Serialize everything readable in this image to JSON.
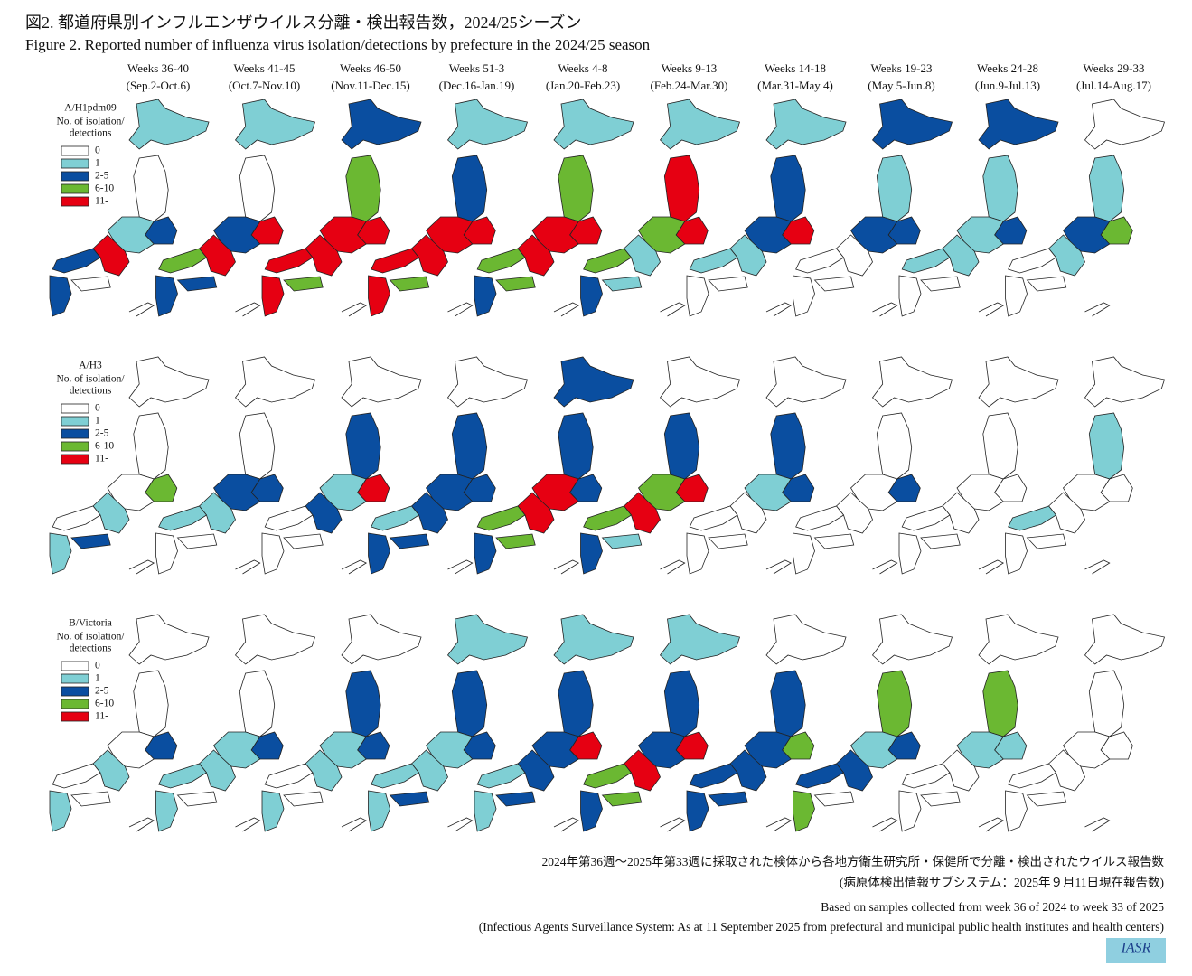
{
  "header": {
    "title_ja": "図2. 都道府県別インフルエンザウイルス分離・検出報告数，2024/25シーズン",
    "title_en": "Figure 2. Reported number of influenza virus isolation/detections by prefecture in the 2024/25 season"
  },
  "columns": [
    {
      "weeks": "Weeks 36-40",
      "dates": "(Sep.2-Oct.6)"
    },
    {
      "weeks": "Weeks 41-45",
      "dates": "(Oct.7-Nov.10)"
    },
    {
      "weeks": "Weeks 46-50",
      "dates": "(Nov.11-Dec.15)"
    },
    {
      "weeks": "Weeks 51-3",
      "dates": "(Dec.16-Jan.19)"
    },
    {
      "weeks": "Weeks 4-8",
      "dates": "(Jan.20-Feb.23)"
    },
    {
      "weeks": "Weeks 9-13",
      "dates": "(Feb.24-Mar.30)"
    },
    {
      "weeks": "Weeks 14-18",
      "dates": "(Mar.31-May 4)"
    },
    {
      "weeks": "Weeks 19-23",
      "dates": "(May 5-Jun.8)"
    },
    {
      "weeks": "Weeks 24-28",
      "dates": "(Jun.9-Jul.13)"
    },
    {
      "weeks": "Weeks 29-33",
      "dates": "(Jul.14-Aug.17)"
    }
  ],
  "legend": {
    "title": [
      "No. of isolation/",
      "detections"
    ],
    "levels": [
      {
        "label": "0",
        "color": "#ffffff"
      },
      {
        "label": "1",
        "color": "#7fcfd4"
      },
      {
        "label": "2-5",
        "color": "#0a4ea0"
      },
      {
        "label": "6-10",
        "color": "#6bb832"
      },
      {
        "label": "11-",
        "color": "#e60012"
      }
    ]
  },
  "rows": [
    {
      "subtype": "A/H1pdm09",
      "maps": [
        [
          1,
          0,
          2,
          1,
          4,
          2,
          0,
          2
        ],
        [
          1,
          0,
          4,
          2,
          4,
          3,
          2,
          2
        ],
        [
          2,
          3,
          4,
          4,
          4,
          4,
          3,
          4
        ],
        [
          1,
          2,
          4,
          4,
          4,
          4,
          3,
          4
        ],
        [
          1,
          3,
          4,
          4,
          4,
          3,
          3,
          2
        ],
        [
          1,
          4,
          4,
          3,
          1,
          3,
          1,
          2
        ],
        [
          1,
          2,
          4,
          2,
          1,
          1,
          0,
          0
        ],
        [
          2,
          1,
          2,
          2,
          0,
          0,
          0,
          0
        ],
        [
          2,
          1,
          2,
          1,
          1,
          1,
          0,
          0
        ],
        [
          0,
          1,
          3,
          2,
          1,
          0,
          0,
          0
        ]
      ]
    },
    {
      "subtype": "A/H3",
      "maps": [
        [
          0,
          0,
          3,
          0,
          1,
          0,
          2,
          1
        ],
        [
          0,
          0,
          2,
          2,
          1,
          1,
          0,
          0
        ],
        [
          0,
          2,
          4,
          1,
          2,
          0,
          0,
          0
        ],
        [
          0,
          2,
          2,
          2,
          2,
          1,
          2,
          2
        ],
        [
          2,
          2,
          2,
          4,
          4,
          3,
          3,
          2
        ],
        [
          0,
          2,
          4,
          3,
          4,
          3,
          1,
          2
        ],
        [
          0,
          2,
          2,
          1,
          0,
          0,
          0,
          0
        ],
        [
          0,
          0,
          2,
          0,
          0,
          0,
          0,
          0
        ],
        [
          0,
          0,
          0,
          0,
          0,
          0,
          0,
          0
        ],
        [
          0,
          1,
          0,
          0,
          0,
          1,
          0,
          0
        ]
      ]
    },
    {
      "subtype": "B/Victoria",
      "maps": [
        [
          0,
          0,
          2,
          0,
          1,
          0,
          0,
          1
        ],
        [
          0,
          0,
          2,
          1,
          1,
          1,
          0,
          1
        ],
        [
          0,
          2,
          2,
          1,
          1,
          0,
          0,
          1
        ],
        [
          1,
          2,
          2,
          1,
          1,
          1,
          2,
          1
        ],
        [
          1,
          2,
          4,
          2,
          2,
          1,
          2,
          1
        ],
        [
          1,
          2,
          4,
          2,
          4,
          3,
          3,
          2
        ],
        [
          0,
          2,
          3,
          2,
          2,
          2,
          2,
          2
        ],
        [
          0,
          3,
          2,
          1,
          2,
          2,
          0,
          3
        ],
        [
          0,
          3,
          1,
          1,
          0,
          0,
          0,
          0
        ],
        [
          0,
          0,
          0,
          0,
          0,
          0,
          0,
          0
        ]
      ]
    }
  ],
  "footer": [
    "2024年第36週～2025年第33週に採取された検体から各地方衛生研究所・保健所で分離・検出されたウイルス報告数",
    "(病原体検出情報サブシステム：2025年９月11日現在報告数)",
    "Based on samples collected from week 36 of 2024 to week 33 of 2025",
    "(Infectious Agents Surveillance System: As at 11 September 2025 from prefectural and municipal public health institutes and health centers)"
  ],
  "logo": "IASR"
}
